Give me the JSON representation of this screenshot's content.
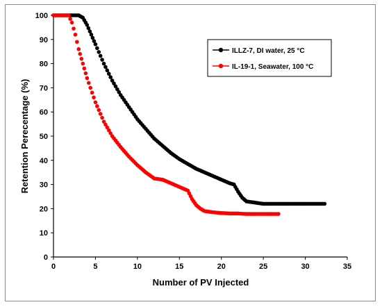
{
  "chart_data": {
    "type": "scatter",
    "title": "",
    "xlabel": "Number of PV Injected",
    "ylabel": "Retention Perecentage (%)",
    "xlim": [
      0,
      35
    ],
    "ylim": [
      0,
      100
    ],
    "xticks": [
      0,
      5,
      10,
      15,
      20,
      25,
      30,
      35
    ],
    "yticks": [
      0,
      10,
      20,
      30,
      40,
      50,
      60,
      70,
      80,
      90,
      100
    ],
    "grid": false,
    "legend_position": "top-right",
    "series": [
      {
        "name": "ILLZ-7, DI water, 25 °C",
        "color": "#000000",
        "x": [
          0,
          1,
          2,
          3,
          3.5,
          4,
          4.5,
          5,
          6,
          7,
          8,
          9,
          10,
          11,
          12,
          13,
          14,
          15,
          16,
          17,
          18,
          19,
          20,
          21,
          21.5,
          22,
          22.5,
          23,
          24,
          25,
          26,
          28,
          30,
          32.3
        ],
        "y": [
          100,
          100,
          100,
          100,
          99,
          96,
          92,
          88,
          80,
          73,
          67,
          62,
          57,
          53,
          49,
          46,
          43,
          40.5,
          38.5,
          36.5,
          35,
          33.5,
          32,
          30.5,
          30,
          27,
          24.5,
          23,
          22.5,
          22,
          22,
          22,
          22,
          22
        ]
      },
      {
        "name": "IL-19-1, Seawater, 100 °C",
        "color": "#ff0000",
        "x": [
          0,
          1,
          1.8,
          2.2,
          2.6,
          3,
          3.5,
          4,
          5,
          6,
          7,
          8,
          9,
          10,
          11,
          12,
          13,
          14,
          15,
          16,
          16.5,
          17,
          17.5,
          18,
          19,
          20,
          21,
          22,
          23,
          24,
          25,
          26,
          26.8
        ],
        "y": [
          100,
          100,
          100,
          97,
          92,
          86,
          80,
          74,
          64,
          56,
          50,
          45.5,
          41.5,
          38,
          35,
          32.5,
          32,
          30.5,
          29,
          27.5,
          24,
          21.5,
          20,
          19,
          18.5,
          18.2,
          18,
          18,
          17.8,
          17.8,
          17.8,
          17.8,
          17.8
        ]
      }
    ]
  }
}
